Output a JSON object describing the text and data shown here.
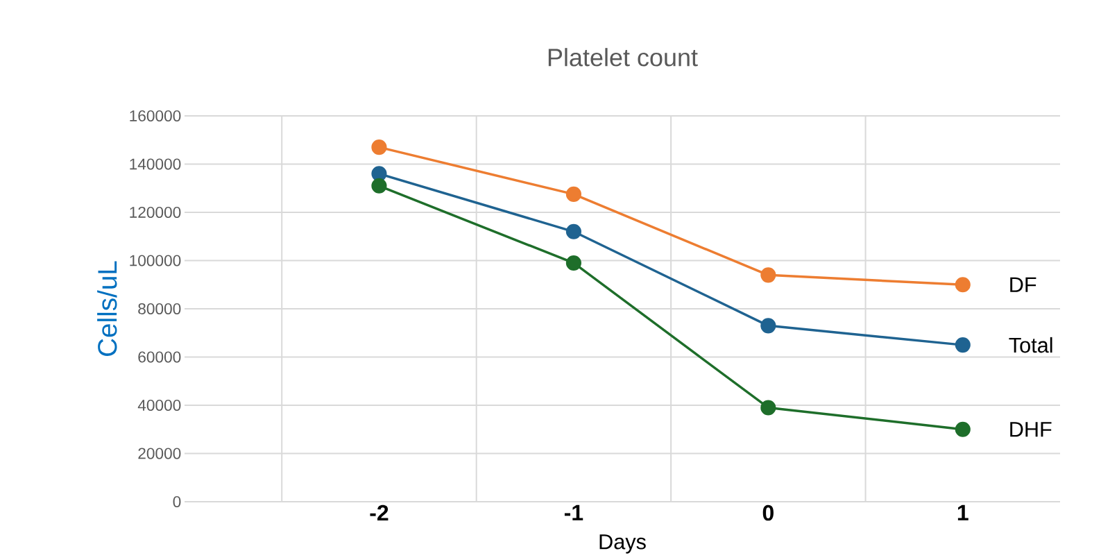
{
  "chart_data": {
    "type": "line",
    "title": "Platelet count",
    "xlabel": "Days",
    "ylabel": "Cells/uL",
    "categories": [
      "-2",
      "-1",
      "0",
      "1"
    ],
    "series": [
      {
        "name": "DF",
        "color": "#ed7d31",
        "values": [
          147000,
          127500,
          94000,
          90000
        ]
      },
      {
        "name": "Total",
        "color": "#1f6391",
        "values": [
          136000,
          112000,
          73000,
          65000
        ]
      },
      {
        "name": "DHF",
        "color": "#1e6e2a",
        "values": [
          131000,
          99000,
          39000,
          30000
        ]
      }
    ],
    "ylim": [
      0,
      160000
    ],
    "yticks": [
      0,
      20000,
      40000,
      60000,
      80000,
      100000,
      120000,
      140000,
      160000
    ],
    "grid": true,
    "marker": "circle",
    "line_style": "solid"
  }
}
